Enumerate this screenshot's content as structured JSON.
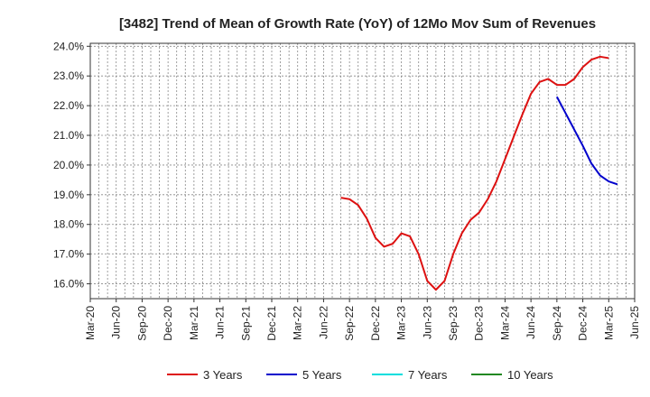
{
  "chart_data": {
    "type": "line",
    "title": "[3482]  Trend of Mean of Growth Rate (YoY) of 12Mo Mov Sum of Revenues",
    "xlabel": "",
    "ylabel": "",
    "y_ticks": [
      "16.0%",
      "17.0%",
      "18.0%",
      "19.0%",
      "20.0%",
      "21.0%",
      "22.0%",
      "23.0%",
      "24.0%"
    ],
    "ylim": [
      15.5,
      24.1
    ],
    "x_ticks": [
      "Mar-20",
      "Jun-20",
      "Sep-20",
      "Dec-20",
      "Mar-21",
      "Jun-21",
      "Sep-21",
      "Dec-21",
      "Mar-22",
      "Jun-22",
      "Sep-22",
      "Dec-22",
      "Mar-23",
      "Jun-23",
      "Sep-23",
      "Dec-23",
      "Mar-24",
      "Jun-24",
      "Sep-24",
      "Dec-24",
      "Mar-25",
      "Jun-25"
    ],
    "x_start": "Mar-20",
    "grid": true,
    "legend_position": "bottom",
    "series": [
      {
        "name": "3 Years",
        "color": "#dd1111",
        "start_index": 29,
        "values": [
          18.9,
          18.85,
          18.65,
          18.2,
          17.55,
          17.25,
          17.35,
          17.7,
          17.6,
          17.0,
          16.1,
          15.8,
          16.1,
          17.0,
          17.7,
          18.15,
          18.4,
          18.85,
          19.45,
          20.2,
          20.95,
          21.7,
          22.4,
          22.8,
          22.9,
          22.7,
          22.7,
          22.9,
          23.3,
          23.55,
          23.65,
          23.6
        ]
      },
      {
        "name": "5 Years",
        "color": "#0000cc",
        "start_index": 54,
        "values": [
          22.3,
          21.75,
          21.2,
          20.65,
          20.05,
          19.65,
          19.45,
          19.35
        ]
      },
      {
        "name": "7 Years",
        "color": "#00dddd",
        "start_index": 0,
        "values": []
      },
      {
        "name": "10 Years",
        "color": "#228822",
        "start_index": 0,
        "values": []
      }
    ]
  }
}
